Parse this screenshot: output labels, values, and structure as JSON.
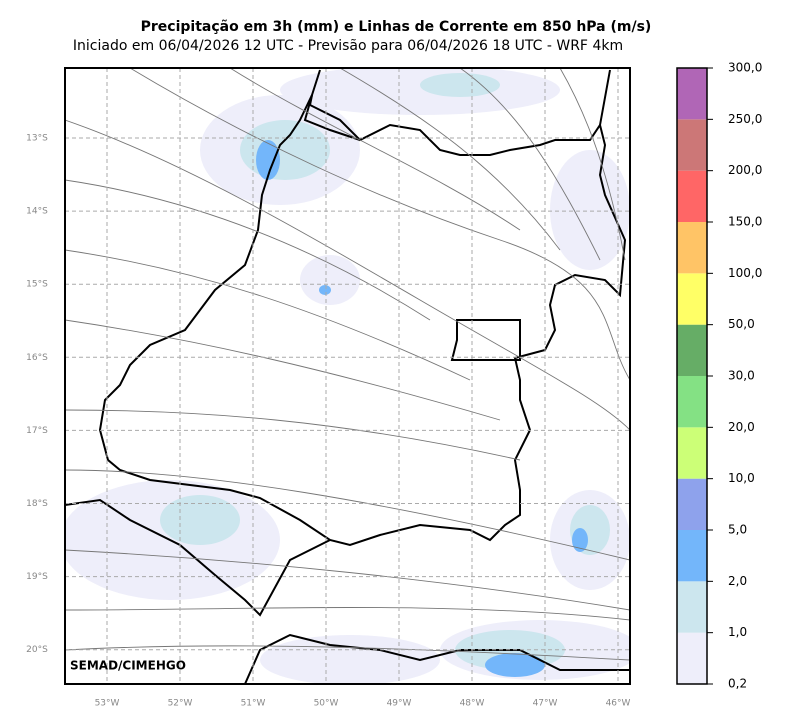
{
  "title": "Precipitação em 3h (mm) e Linhas de Corrente em 850 hPa (m/s)",
  "subtitle": "Iniciado em 06/04/2026 12 UTC - Previsão para 06/04/2026 18 UTC - WRF 4km",
  "credit": "SEMAD/CIMEHGO",
  "lon_labels": [
    "53°W",
    "52°W",
    "51°W",
    "50°W",
    "49°W",
    "48°W",
    "47°W",
    "46°W"
  ],
  "lat_labels": [
    "13°S",
    "14°S",
    "15°S",
    "16°S",
    "17°S",
    "18°S",
    "19°S",
    "20°S"
  ],
  "colorbar": {
    "levels": [
      {
        "value": 0.2,
        "label": "0,2"
      },
      {
        "value": 1,
        "label": "1,0"
      },
      {
        "value": 2,
        "label": "2,0"
      },
      {
        "value": 5,
        "label": "5,0"
      },
      {
        "value": 10,
        "label": "10,0"
      },
      {
        "value": 20,
        "label": "20,0"
      },
      {
        "value": 30,
        "label": "30,0"
      },
      {
        "value": 50,
        "label": "50,0"
      },
      {
        "value": 100,
        "label": "100,0"
      },
      {
        "value": 150,
        "label": "150,0"
      },
      {
        "value": 200,
        "label": "200,0"
      },
      {
        "value": 250,
        "label": "250,0"
      },
      {
        "value": 300,
        "label": "300,0"
      }
    ],
    "colors": [
      "#eeeefa",
      "#cce6ee",
      "#73b6fa",
      "#8ea2ec",
      "#ccff77",
      "#84e184",
      "#66ad66",
      "#ffff66",
      "#ffc466",
      "#ff6666",
      "#cc7777",
      "#b066b6"
    ]
  }
}
